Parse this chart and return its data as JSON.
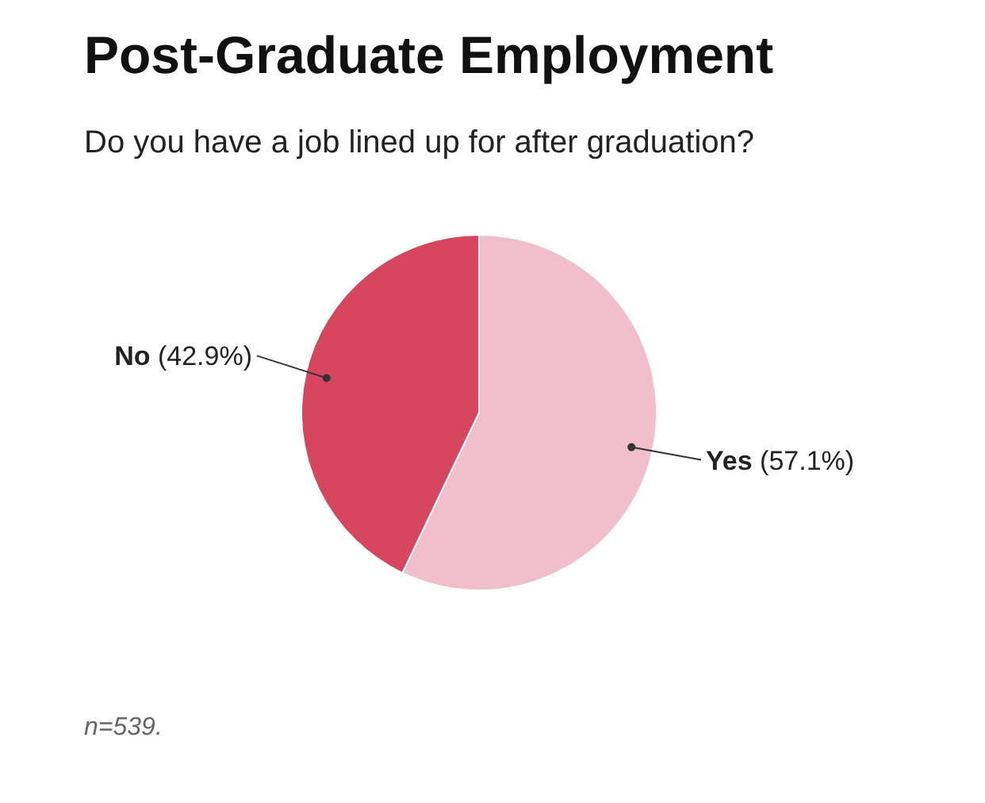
{
  "chart_data": {
    "type": "pie",
    "title": "Post-Graduate Employment",
    "subtitle": "Do you have a job lined up for after graduation?",
    "categories": [
      "Yes",
      "No"
    ],
    "values": [
      57.1,
      42.9
    ],
    "value_labels": [
      "(57.1%)",
      "(42.9%)"
    ],
    "colors": [
      "#f0bfcb",
      "#d6465f"
    ],
    "annotations": [
      "n=539."
    ]
  }
}
